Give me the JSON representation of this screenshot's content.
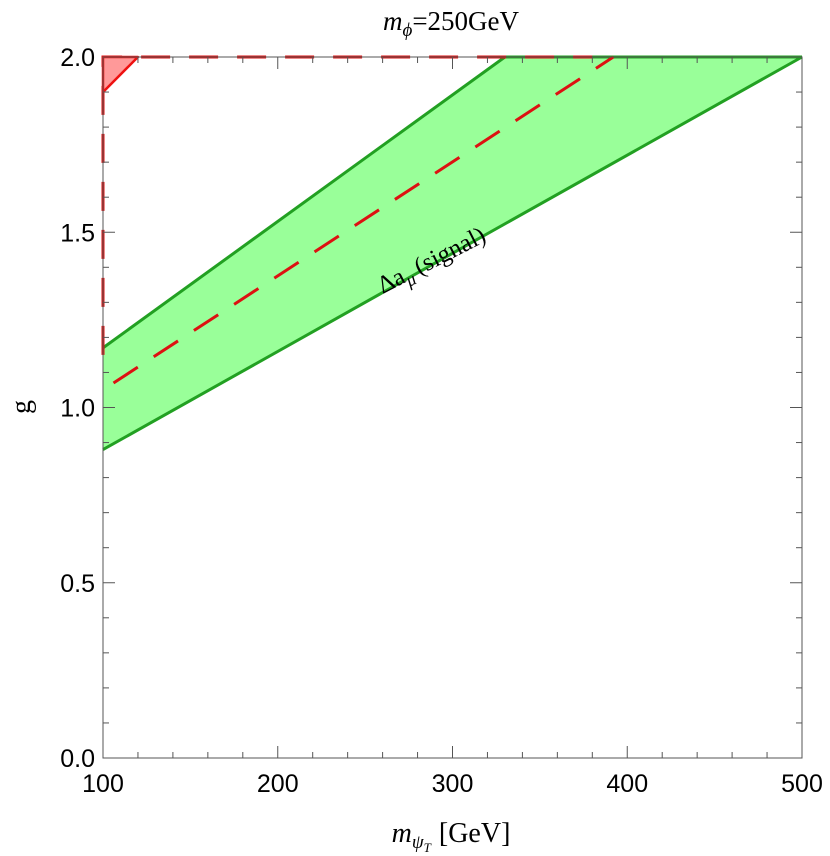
{
  "chart_data": {
    "type": "area",
    "title": "250GeV",
    "title_symbol": "m",
    "title_subscript": "ϕ",
    "xlabel": "[GeV]",
    "xlabel_symbol": "m",
    "xlabel_subscript": "ψ",
    "xlabel_subsubscript": "T",
    "ylabel": "g",
    "xlim": [
      100,
      500
    ],
    "ylim": [
      0.0,
      2.0
    ],
    "x_ticks": [
      100,
      200,
      300,
      400,
      500
    ],
    "x_tick_labels": [
      "100",
      "200",
      "300",
      "400",
      "500"
    ],
    "y_ticks": [
      0.0,
      0.5,
      1.0,
      1.5,
      2.0
    ],
    "y_tick_labels": [
      "0.0",
      "0.5",
      "1.0",
      "1.5",
      "2.0"
    ],
    "grid": false,
    "series": [
      {
        "kind": "band",
        "upper": [
          [
            100,
            1.17
          ],
          [
            330,
            2.0
          ],
          [
            500,
            2.0
          ]
        ],
        "lower": [
          [
            100,
            0.88
          ],
          [
            500,
            2.0
          ]
        ],
        "fill": "#99ff99",
        "stroke": "#22a022"
      },
      {
        "kind": "dashed-line",
        "points": [
          [
            106,
            1.07
          ],
          [
            392,
            2.0
          ]
        ],
        "stroke": "#dd1111"
      },
      {
        "kind": "dashed-line",
        "points": [
          [
            100,
            1.15
          ],
          [
            100,
            2.0
          ],
          [
            380,
            2.0
          ]
        ],
        "stroke": "#dd1111"
      },
      {
        "kind": "region",
        "points": [
          [
            100,
            1.9
          ],
          [
            120,
            2.0
          ],
          [
            100,
            2.0
          ]
        ],
        "fill": "#ff9999",
        "stroke": "#ee1111"
      }
    ],
    "annotations": [
      {
        "delta": "Δa",
        "sub": "μ",
        "rest": "(signal)",
        "x": 290,
        "y": 1.4,
        "angle_deg": -27
      }
    ]
  }
}
